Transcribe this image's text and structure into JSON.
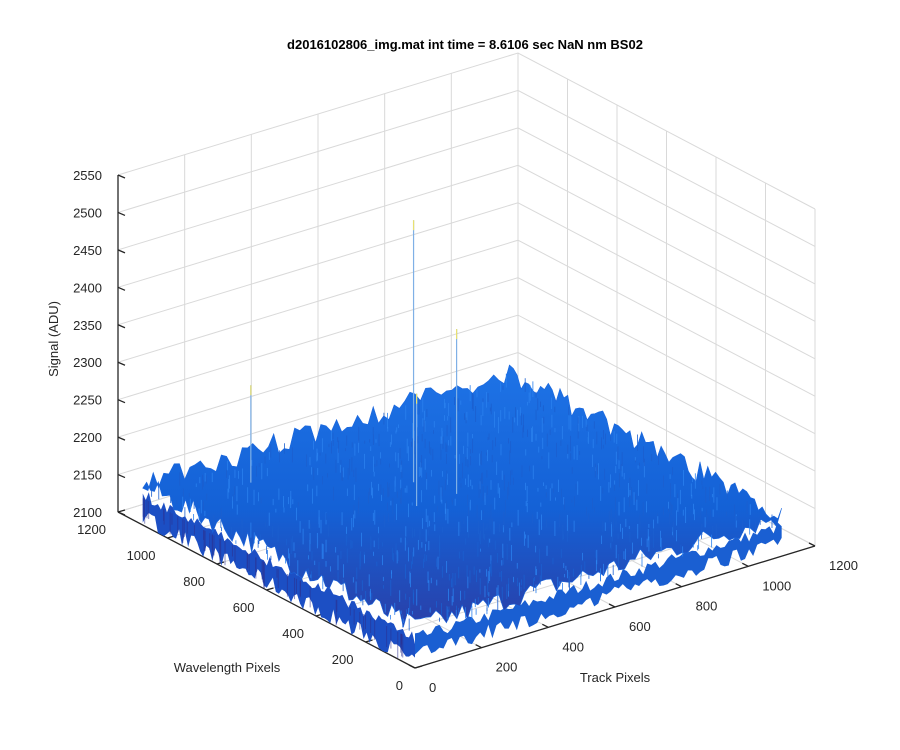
{
  "chart_data": {
    "type": "surface",
    "title": "d2016102806_img.mat int time = 8.6106 sec  NaN nm BS02",
    "xlabel": "Track Pixels",
    "ylabel": "Wavelength Pixels",
    "zlabel": "Signal (ADU)",
    "xlim": [
      0,
      1200
    ],
    "ylim": [
      0,
      1200
    ],
    "zlim": [
      2100,
      2550
    ],
    "x_ticks": [
      "0",
      "200",
      "400",
      "600",
      "800",
      "1000",
      "1200"
    ],
    "y_ticks": [
      "0",
      "200",
      "400",
      "600",
      "800",
      "1000",
      "1200"
    ],
    "z_ticks": [
      "2100",
      "2150",
      "2200",
      "2250",
      "2300",
      "2350",
      "2400",
      "2450",
      "2500",
      "2550"
    ],
    "grid": true,
    "colormap": "parula",
    "surface_color": "#1565d8",
    "data_extent": {
      "x": [
        0,
        1100
      ],
      "y": [
        0,
        1100
      ]
    },
    "baseline_signal": 2140,
    "noise_band": [
      2100,
      2170
    ],
    "spikes": [
      {
        "x": 560,
        "y": 760,
        "z": 2490
      },
      {
        "x": 600,
        "y": 640,
        "z": 2360
      },
      {
        "x": 250,
        "y": 1000,
        "z": 2270
      },
      {
        "x": 480,
        "y": 640,
        "z": 2290
      }
    ]
  }
}
